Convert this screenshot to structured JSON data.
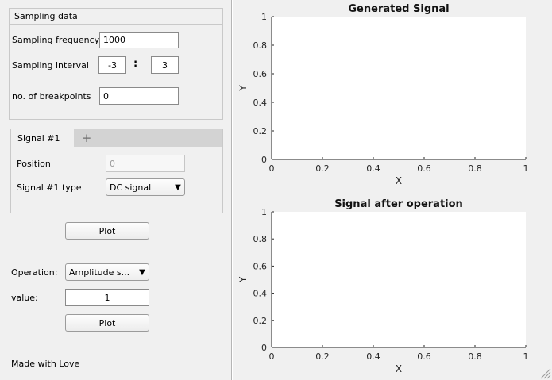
{
  "sampling_panel": {
    "title": "Sampling data",
    "frequency_label": "Sampling frequency",
    "frequency_value": "1000",
    "interval_label": "Sampling interval",
    "interval_start": "-3",
    "interval_separator": ":",
    "interval_end": "3",
    "breakpoints_label": "no. of breakpoints",
    "breakpoints_value": "0"
  },
  "signal_tabs": {
    "active_tab": "Signal #1",
    "add_tab": "+",
    "position_label": "Position",
    "position_value": "0",
    "type_label": "Signal #1 type",
    "type_value": "DC signal",
    "dropdown_arrow": "▼"
  },
  "plot_button_1": "Plot",
  "operation": {
    "label": "Operation:",
    "value": "Amplitude s...",
    "dropdown_arrow": "▼",
    "value_label": "value:",
    "value_input": "1",
    "plot_button": "Plot"
  },
  "footer_text": "Made with Love",
  "chart_data": [
    {
      "type": "line",
      "title": "Generated Signal",
      "xlabel": "X",
      "ylabel": "Y",
      "xlim": [
        0,
        1
      ],
      "ylim": [
        0,
        1
      ],
      "xticks": [
        "0",
        "0.2",
        "0.4",
        "0.6",
        "0.8",
        "1"
      ],
      "yticks": [
        "0",
        "0.2",
        "0.4",
        "0.6",
        "0.8",
        "1"
      ],
      "series": []
    },
    {
      "type": "line",
      "title": "Signal after operation",
      "xlabel": "X",
      "ylabel": "Y",
      "xlim": [
        0,
        1
      ],
      "ylim": [
        0,
        1
      ],
      "xticks": [
        "0",
        "0.2",
        "0.4",
        "0.6",
        "0.8",
        "1"
      ],
      "yticks": [
        "0",
        "0.2",
        "0.4",
        "0.6",
        "0.8",
        "1"
      ],
      "series": []
    }
  ]
}
